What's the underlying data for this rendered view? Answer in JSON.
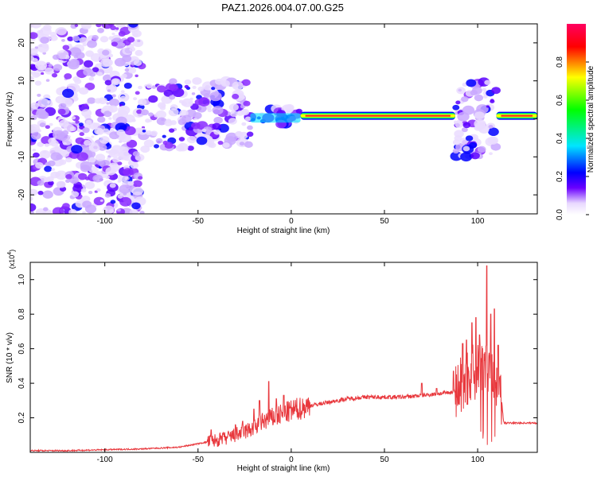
{
  "title": "PAZ1.2026.004.07.00.G25",
  "chart_data": [
    {
      "type": "heatmap",
      "xlabel": "Height of straight line (km)",
      "ylabel": "Frequency (Hz)",
      "xlim": [
        -140,
        132
      ],
      "ylim": [
        -25,
        25
      ],
      "xticks": [
        -100,
        -50,
        0,
        50,
        100
      ],
      "yticks": [
        -20,
        -10,
        0,
        10,
        20
      ],
      "colorbar": {
        "label": "Normalized spectral amplitude",
        "range": [
          0,
          1
        ],
        "ticks": [
          "0.0",
          "0.2",
          "0.4",
          "0.6",
          "0.8"
        ],
        "colors": [
          "#ffffff",
          "#6a00ff",
          "#0000ff",
          "#00e5ff",
          "#00ff00",
          "#ffff00",
          "#ff0000",
          "#ff0060"
        ]
      },
      "regions": [
        {
          "x": [
            -140,
            -80
          ],
          "freq": [
            -25,
            25
          ],
          "amplitude": 0.12
        },
        {
          "x": [
            -80,
            -22
          ],
          "freq": [
            -8,
            10
          ],
          "amplitude": 0.2
        },
        {
          "x": [
            -22,
            5
          ],
          "freq": [
            -2,
            3
          ],
          "amplitude": 0.45
        },
        {
          "x": [
            5,
            88
          ],
          "freq": [
            0,
            1.5
          ],
          "amplitude": 0.75
        },
        {
          "x": [
            88,
            110
          ],
          "freq": [
            -10,
            10
          ],
          "amplitude": 0.2
        },
        {
          "x": [
            110,
            132
          ],
          "freq": [
            0,
            1.5
          ],
          "amplitude": 0.8
        }
      ]
    },
    {
      "type": "line",
      "xlabel": "Height of straight line (km)",
      "ylabel": "SNR (10 * v/v)",
      "y_multiplier": "(x10",
      "y_multiplier_exp": "4",
      "y_multiplier_close": ")",
      "xlim": [
        -140,
        132
      ],
      "ylim": [
        0,
        1.1
      ],
      "xticks": [
        -100,
        -50,
        0,
        50,
        100
      ],
      "yticks": [
        "0.2",
        "0.4",
        "0.6",
        "0.8",
        "1.0"
      ],
      "series": [
        {
          "color": "#e8383d",
          "x": [
            -140,
            -120,
            -100,
            -80,
            -60,
            -50,
            -40,
            -35,
            -30,
            -25,
            -20,
            -15,
            -10,
            -5,
            0,
            10,
            20,
            30,
            40,
            50,
            60,
            70,
            80,
            88,
            92,
            96,
            100,
            104,
            108,
            112,
            114,
            120,
            132
          ],
          "y": [
            0.01,
            0.01,
            0.015,
            0.02,
            0.03,
            0.05,
            0.07,
            0.08,
            0.1,
            0.12,
            0.14,
            0.18,
            0.2,
            0.22,
            0.24,
            0.27,
            0.29,
            0.31,
            0.32,
            0.32,
            0.32,
            0.33,
            0.34,
            0.35,
            0.4,
            0.45,
            0.5,
            0.55,
            0.45,
            0.4,
            0.17,
            0.17,
            0.17
          ]
        }
      ],
      "spikes": [
        {
          "x": -43,
          "y": 0.13
        },
        {
          "x": -36,
          "y": 0.09
        },
        {
          "x": -30,
          "y": 0.16
        },
        {
          "x": -26,
          "y": 0.18
        },
        {
          "x": -20,
          "y": 0.25
        },
        {
          "x": -17,
          "y": 0.3
        },
        {
          "x": -12,
          "y": 0.41
        },
        {
          "x": -8,
          "y": 0.31
        },
        {
          "x": -4,
          "y": 0.33
        },
        {
          "x": 70,
          "y": 0.4
        },
        {
          "x": 78,
          "y": 0.37
        },
        {
          "x": 87,
          "y": 0.47
        },
        {
          "x": 92,
          "y": 0.63
        },
        {
          "x": 94,
          "y": 0.65
        },
        {
          "x": 97,
          "y": 0.75
        },
        {
          "x": 99,
          "y": 0.78
        },
        {
          "x": 101,
          "y": 0.68
        },
        {
          "x": 103,
          "y": 0.98
        },
        {
          "x": 105,
          "y": 1.08
        },
        {
          "x": 107,
          "y": 0.8
        },
        {
          "x": 109,
          "y": 0.83
        },
        {
          "x": 111,
          "y": 0.62
        }
      ]
    }
  ]
}
